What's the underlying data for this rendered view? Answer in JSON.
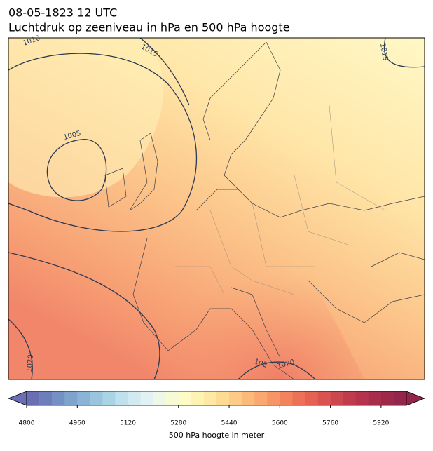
{
  "header": {
    "title": "08-05-1823 12 UTC",
    "subtitle": "Luchtdruk op zeeniveau in hPa en 500 hPa hoogte"
  },
  "isobar_labels": [
    "1010",
    "1015",
    "1005",
    "1015",
    "1020",
    "102",
    "1020"
  ],
  "colorbar": {
    "label": "500 hPa hoogte in meter",
    "lim": [
      4800,
      6000
    ],
    "ticks": [
      4800,
      4960,
      5120,
      5280,
      5440,
      5600,
      5760,
      5920
    ],
    "colors": [
      "#6a6fb4",
      "#6d7fba",
      "#7491c3",
      "#7ea3cc",
      "#8ab4d5",
      "#9ac5de",
      "#abd3e6",
      "#bfe0ed",
      "#d1eaf2",
      "#e2f2f2",
      "#eef8e6",
      "#f7fbd5",
      "#fefcc4",
      "#fff3b3",
      "#ffe8a3",
      "#fedb94",
      "#fdcb86",
      "#fcba7a",
      "#faa86f",
      "#f69565",
      "#f2835d",
      "#ec7158",
      "#e46153",
      "#da5350",
      "#cd474e",
      "#c03c4d",
      "#b3344c",
      "#a82d4b",
      "#9e284a",
      "#93254a"
    ]
  }
}
